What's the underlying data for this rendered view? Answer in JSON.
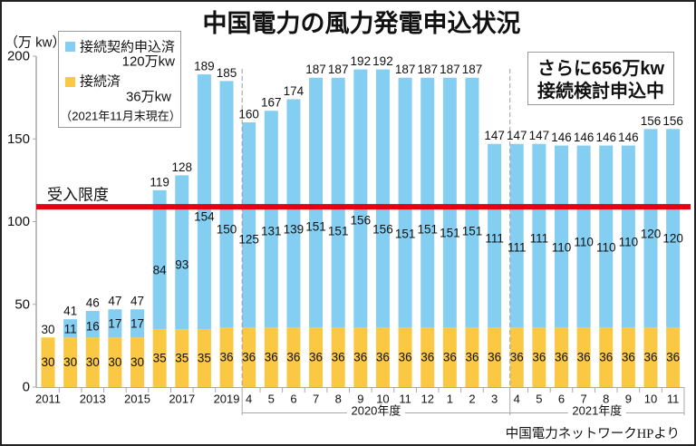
{
  "chart_data": {
    "type": "bar",
    "stacked": true,
    "title": "中国電力の風力発電申込状況",
    "ylabel": "（万 kw）",
    "xlabel": "",
    "ylim": [
      0,
      200
    ],
    "yticks": [
      0,
      50,
      100,
      150,
      200
    ],
    "grid": false,
    "categories": [
      "2011",
      "2012",
      "2013",
      "2014",
      "2015",
      "2016",
      "2017",
      "2018",
      "2019",
      "2020-4",
      "2020-5",
      "2020-6",
      "2020-7",
      "2020-8",
      "2020-9",
      "2020-10",
      "2020-11",
      "2020-12",
      "2020-1",
      "2020-2",
      "2020-3",
      "2021-4",
      "2021-5",
      "2021-6",
      "2021-7",
      "2021-8",
      "2021-9",
      "2021-10",
      "2021-11"
    ],
    "tick_labels": [
      "2011",
      "",
      "2013",
      "",
      "2015",
      "",
      "2017",
      "",
      "2019",
      "4",
      "5",
      "6",
      "7",
      "8",
      "9",
      "10",
      "11",
      "12",
      "1",
      "2",
      "3",
      "4",
      "5",
      "6",
      "7",
      "8",
      "9",
      "10",
      "11"
    ],
    "groups": [
      {
        "label": "2020年度",
        "start_index": 9,
        "end_index": 20
      },
      {
        "label": "2021年度",
        "start_index": 21,
        "end_index": 28
      }
    ],
    "series": [
      {
        "name": "接続済",
        "color": "#fac842",
        "values": [
          30,
          30,
          30,
          30,
          30,
          35,
          35,
          35,
          36,
          36,
          36,
          36,
          36,
          36,
          36,
          36,
          36,
          36,
          36,
          36,
          36,
          36,
          36,
          36,
          36,
          36,
          36,
          36,
          36
        ]
      },
      {
        "name": "接続契約申込済",
        "color": "#84cef1",
        "values": [
          0,
          11,
          16,
          17,
          17,
          84,
          93,
          154,
          150,
          125,
          131,
          139,
          151,
          151,
          156,
          156,
          151,
          151,
          151,
          151,
          111,
          111,
          111,
          110,
          110,
          110,
          110,
          120,
          120
        ]
      }
    ],
    "totals": [
      30,
      41,
      46,
      47,
      47,
      119,
      128,
      189,
      185,
      160,
      167,
      174,
      187,
      187,
      192,
      192,
      187,
      187,
      187,
      187,
      147,
      147,
      147,
      146,
      146,
      146,
      146,
      156,
      156
    ],
    "reference_line": {
      "label": "受入限度",
      "value": 109,
      "color": "#e50012"
    },
    "legend": {
      "placement": "top-left",
      "items": [
        {
          "label": "接続契約申込済",
          "value": "120万kw",
          "color": "#84cef1"
        },
        {
          "label": "接続済",
          "value": "36万kw",
          "color": "#fac842"
        }
      ],
      "note": "（2021年11月末現在）"
    },
    "annotation": {
      "line1": "さらに656万kw",
      "line2": "接続検討申込中",
      "placement": "top-right"
    },
    "source": "中国電力ネットワークHPより"
  }
}
